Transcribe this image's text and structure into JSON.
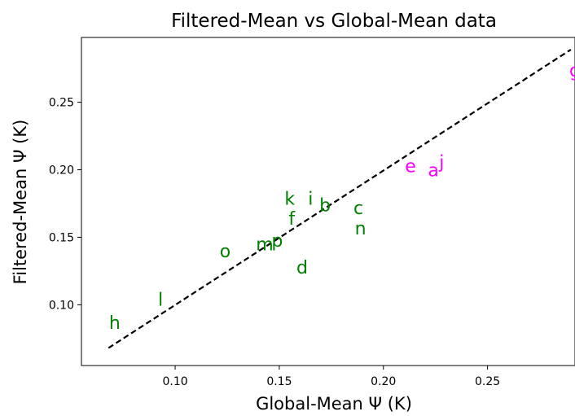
{
  "chart_data": {
    "type": "scatter",
    "title": "Filtered-Mean vs Global-Mean data",
    "xlabel": "Global-Mean Ψ (K)",
    "ylabel": "Filtered-Mean Ψ (K)",
    "xlim": [
      0.055,
      0.292
    ],
    "ylim": [
      0.055,
      0.298
    ],
    "xticks": [
      0.1,
      0.15,
      0.2,
      0.25
    ],
    "xtick_labels": [
      "0.10",
      "0.15",
      "0.20",
      "0.25"
    ],
    "yticks": [
      0.1,
      0.15,
      0.2,
      0.25
    ],
    "ytick_labels": [
      "0.10",
      "0.15",
      "0.20",
      "0.25"
    ],
    "grid": false,
    "colors": {
      "green": "#008000",
      "magenta": "#ff00ff",
      "line": "#000000"
    },
    "reference_line": {
      "style": "dashed",
      "x": [
        0.068,
        0.29
      ],
      "y": [
        0.068,
        0.289
      ]
    },
    "points": [
      {
        "label": "a",
        "x": 0.224,
        "y": 0.2,
        "color": "#ff00ff"
      },
      {
        "label": "b",
        "x": 0.172,
        "y": 0.174,
        "color": "#008000"
      },
      {
        "label": "c",
        "x": 0.188,
        "y": 0.172,
        "color": "#008000"
      },
      {
        "label": "d",
        "x": 0.161,
        "y": 0.128,
        "color": "#008000"
      },
      {
        "label": "e",
        "x": 0.213,
        "y": 0.203,
        "color": "#ff00ff"
      },
      {
        "label": "f",
        "x": 0.156,
        "y": 0.164,
        "color": "#008000"
      },
      {
        "label": "g",
        "x": 0.292,
        "y": 0.274,
        "color": "#ff00ff"
      },
      {
        "label": "h",
        "x": 0.071,
        "y": 0.087,
        "color": "#008000"
      },
      {
        "label": "i",
        "x": 0.165,
        "y": 0.179,
        "color": "#008000"
      },
      {
        "label": "j",
        "x": 0.228,
        "y": 0.206,
        "color": "#ff00ff"
      },
      {
        "label": "k",
        "x": 0.155,
        "y": 0.179,
        "color": "#008000"
      },
      {
        "label": "l",
        "x": 0.093,
        "y": 0.104,
        "color": "#008000"
      },
      {
        "label": "m",
        "x": 0.143,
        "y": 0.145,
        "color": "#008000"
      },
      {
        "label": "n",
        "x": 0.189,
        "y": 0.157,
        "color": "#008000"
      },
      {
        "label": "o",
        "x": 0.124,
        "y": 0.14,
        "color": "#008000"
      },
      {
        "label": "p",
        "x": 0.149,
        "y": 0.148,
        "color": "#008000"
      }
    ]
  }
}
